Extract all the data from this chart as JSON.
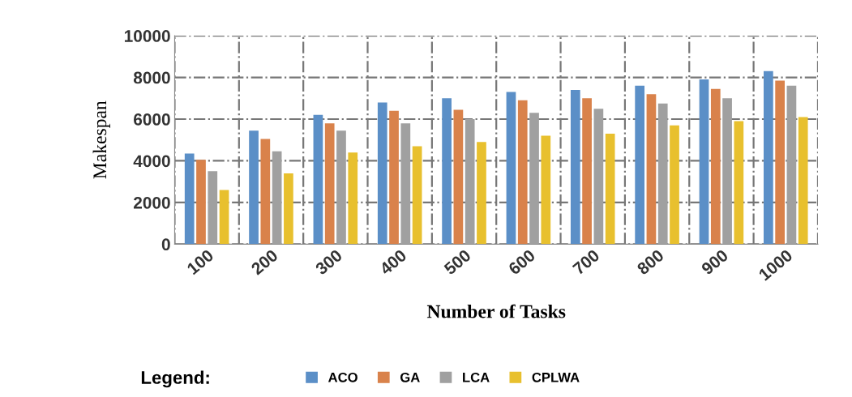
{
  "chart_data": {
    "type": "bar",
    "xlabel": "Number of Tasks",
    "ylabel": "Makespan",
    "legend_title": "Legend:",
    "categories": [
      "100",
      "200",
      "300",
      "400",
      "500",
      "600",
      "700",
      "800",
      "900",
      "1000"
    ],
    "series": [
      {
        "name": "ACO",
        "color": "#5b8fc7",
        "values": [
          4350,
          5450,
          6200,
          6800,
          7000,
          7300,
          7400,
          7600,
          7900,
          8300
        ]
      },
      {
        "name": "GA",
        "color": "#d9824b",
        "values": [
          4050,
          5050,
          5800,
          6400,
          6450,
          6900,
          7000,
          7200,
          7450,
          7850
        ]
      },
      {
        "name": "LCA",
        "color": "#a0a0a0",
        "values": [
          3500,
          4450,
          5450,
          5800,
          6000,
          6300,
          6500,
          6750,
          7000,
          7600
        ]
      },
      {
        "name": "CPLWA",
        "color": "#e8c02e",
        "values": [
          2600,
          3400,
          4400,
          4700,
          4900,
          5200,
          5300,
          5700,
          5900,
          6100
        ]
      }
    ],
    "ylim": [
      0,
      10000
    ],
    "yticks": [
      0,
      2000,
      4000,
      6000,
      8000,
      10000
    ],
    "grid": true,
    "legend": "bottom"
  }
}
